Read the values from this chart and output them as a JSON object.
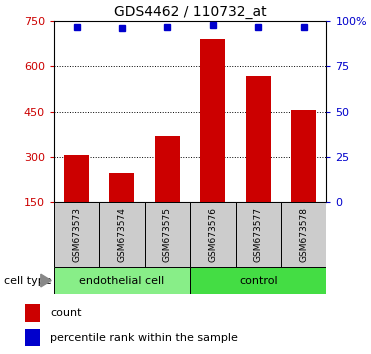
{
  "title": "GDS4462 / 110732_at",
  "samples": [
    "GSM673573",
    "GSM673574",
    "GSM673575",
    "GSM673576",
    "GSM673577",
    "GSM673578"
  ],
  "counts": [
    305,
    245,
    368,
    692,
    568,
    455
  ],
  "percentile_ranks": [
    97,
    96,
    97,
    98,
    97,
    97
  ],
  "ylim_left": [
    150,
    750
  ],
  "ylim_right": [
    0,
    100
  ],
  "yticks_left": [
    150,
    300,
    450,
    600,
    750
  ],
  "yticks_right": [
    0,
    25,
    50,
    75,
    100
  ],
  "ytick_labels_right": [
    "0",
    "25",
    "50",
    "75",
    "100%"
  ],
  "bar_color": "#cc0000",
  "dot_color": "#0000cc",
  "bar_width": 0.55,
  "groups": [
    {
      "label": "endothelial cell",
      "indices": [
        0,
        1,
        2
      ],
      "color": "#88ee88"
    },
    {
      "label": "control",
      "indices": [
        3,
        4,
        5
      ],
      "color": "#44dd44"
    }
  ],
  "group_label": "cell type",
  "legend_count_label": "count",
  "legend_percentile_label": "percentile rank within the sample",
  "tick_box_color": "#cccccc",
  "title_fontsize": 10,
  "tick_fontsize": 8,
  "sample_fontsize": 6.5,
  "group_fontsize": 8
}
